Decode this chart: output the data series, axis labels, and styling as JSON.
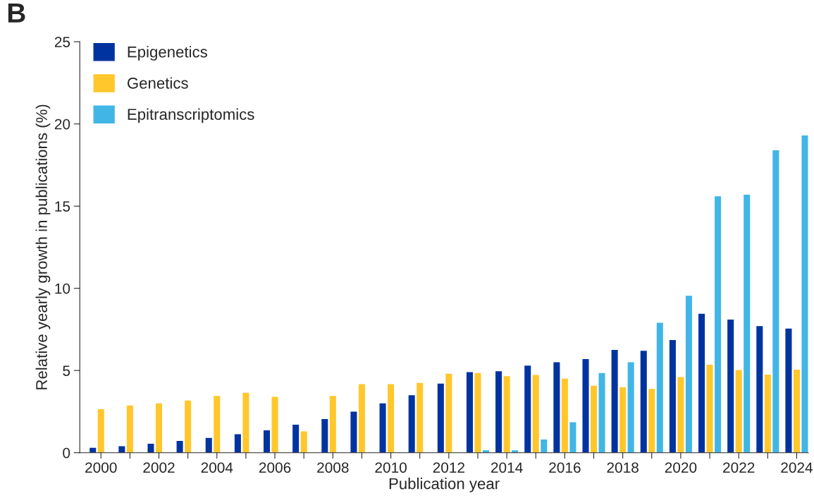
{
  "chart_data": {
    "type": "bar",
    "xlabel": "Publication year",
    "ylabel": "Relative yearly growth in publications (%)",
    "annotations": [
      "B"
    ],
    "x": [
      2000,
      2001,
      2002,
      2003,
      2004,
      2005,
      2006,
      2007,
      2008,
      2009,
      2010,
      2011,
      2012,
      2013,
      2014,
      2015,
      2016,
      2017,
      2018,
      2019,
      2020,
      2021,
      2022,
      2023,
      2024
    ],
    "series": [
      {
        "name": "Epigenetics",
        "color": "#0033a0",
        "values": [
          0.3,
          0.4,
          0.55,
          0.72,
          0.9,
          1.12,
          1.36,
          1.7,
          2.05,
          2.5,
          3.0,
          3.5,
          4.2,
          4.9,
          4.95,
          5.3,
          5.5,
          5.7,
          6.25,
          6.2,
          6.85,
          8.45,
          8.1,
          7.7,
          7.55
        ]
      },
      {
        "name": "Genetics",
        "color": "#ffc72c",
        "values": [
          2.65,
          2.87,
          3.0,
          3.17,
          3.45,
          3.65,
          3.4,
          1.3,
          3.45,
          4.17,
          4.17,
          4.25,
          4.8,
          4.85,
          4.65,
          4.73,
          4.5,
          4.07,
          3.98,
          3.88,
          4.6,
          5.35,
          5.03,
          4.75,
          5.05
        ]
      },
      {
        "name": "Epitranscriptomics",
        "color": "#41b6e6",
        "values": [
          null,
          null,
          null,
          null,
          null,
          null,
          null,
          null,
          null,
          null,
          null,
          null,
          null,
          0.15,
          0.15,
          0.8,
          1.85,
          4.85,
          5.5,
          7.9,
          9.55,
          15.6,
          15.7,
          18.4,
          19.3
        ]
      }
    ],
    "xlim": [
      1999.27,
      2024.4
    ],
    "ylim": [
      0,
      25
    ],
    "xticks": [
      2000,
      {
        "value": 2001,
        "label": null
      },
      2002,
      {
        "value": 2003,
        "label": null
      },
      2004,
      {
        "value": 2005,
        "label": null
      },
      2006,
      {
        "value": 2007,
        "label": null
      },
      2008,
      {
        "value": 2009,
        "label": null
      },
      2010,
      {
        "value": 2011,
        "label": null
      },
      2012,
      {
        "value": 2013,
        "label": null
      },
      2014,
      {
        "value": 2015,
        "label": null
      },
      2016,
      {
        "value": 2017,
        "label": null
      },
      2018,
      {
        "value": 2019,
        "label": null
      },
      2020,
      {
        "value": 2021,
        "label": null
      },
      2022,
      {
        "value": 2023,
        "label": null
      },
      2024
    ],
    "yticks": [
      0,
      5,
      10,
      15,
      20,
      25
    ],
    "grid": false,
    "legend": "top left"
  }
}
